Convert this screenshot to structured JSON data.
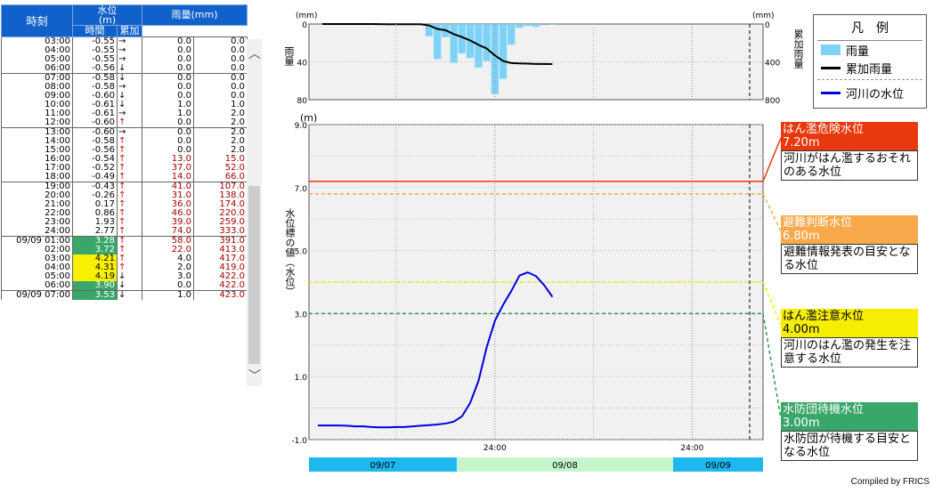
{
  "table": {
    "headers": {
      "time": "時刻",
      "level": "水位",
      "level_unit": "(m)",
      "rain": "雨量(mm)",
      "rain_hour": "時間",
      "rain_total": "累加"
    },
    "groups": [
      [
        {
          "t": "03:00",
          "v": "-0.55",
          "a": "→",
          "h": "0.0",
          "s": "0.0"
        },
        {
          "t": "04:00",
          "v": "-0.55",
          "a": "→",
          "h": "0.0",
          "s": "0.0"
        },
        {
          "t": "05:00",
          "v": "-0.55",
          "a": "→",
          "h": "0.0",
          "s": "0.0"
        },
        {
          "t": "06:00",
          "v": "-0.56",
          "a": "↓",
          "h": "0.0",
          "s": "0.0"
        }
      ],
      [
        {
          "t": "07:00",
          "v": "-0.58",
          "a": "↓",
          "h": "0.0",
          "s": "0.0"
        },
        {
          "t": "08:00",
          "v": "-0.58",
          "a": "→",
          "h": "0.0",
          "s": "0.0"
        },
        {
          "t": "09:00",
          "v": "-0.60",
          "a": "↓",
          "h": "0.0",
          "s": "0.0"
        },
        {
          "t": "10:00",
          "v": "-0.61",
          "a": "↓",
          "h": "1.0",
          "s": "1.0"
        },
        {
          "t": "11:00",
          "v": "-0.61",
          "a": "→",
          "h": "1.0",
          "s": "2.0"
        },
        {
          "t": "12:00",
          "v": "-0.60",
          "a": "↑",
          "h": "0.0",
          "s": "2.0"
        }
      ],
      [
        {
          "t": "13:00",
          "v": "-0.60",
          "a": "→",
          "h": "0.0",
          "s": "2.0"
        },
        {
          "t": "14:00",
          "v": "-0.58",
          "a": "↑",
          "h": "0.0",
          "s": "2.0"
        },
        {
          "t": "15:00",
          "v": "-0.56",
          "a": "↑",
          "h": "0.0",
          "s": "2.0"
        },
        {
          "t": "16:00",
          "v": "-0.54",
          "a": "↑",
          "h": "13.0",
          "s": "15.0"
        },
        {
          "t": "17:00",
          "v": "-0.52",
          "a": "↑",
          "h": "37.0",
          "s": "52.0"
        },
        {
          "t": "18:00",
          "v": "-0.49",
          "a": "↑",
          "h": "14.0",
          "s": "66.0"
        }
      ],
      [
        {
          "t": "19:00",
          "v": "-0.43",
          "a": "↑",
          "h": "41.0",
          "s": "107.0"
        },
        {
          "t": "20:00",
          "v": "-0.26",
          "a": "↑",
          "h": "31.0",
          "s": "138.0"
        },
        {
          "t": "21:00",
          "v": "0.17",
          "a": "↑",
          "h": "36.0",
          "s": "174.0"
        },
        {
          "t": "22:00",
          "v": "0.86",
          "a": "↑",
          "h": "46.0",
          "s": "220.0"
        },
        {
          "t": "23:00",
          "v": "1.93",
          "a": "↑",
          "h": "39.0",
          "s": "259.0"
        },
        {
          "t": "24:00",
          "v": "2.77",
          "a": "↑",
          "h": "74.0",
          "s": "333.0"
        }
      ],
      [
        {
          "t": "09/09 01:00",
          "v": "3.28",
          "a": "↑",
          "h": "58.0",
          "s": "391.0",
          "c": "green"
        },
        {
          "t": "02:00",
          "v": "3.72",
          "a": "↑",
          "h": "22.0",
          "s": "413.0",
          "c": "green"
        },
        {
          "t": "03:00",
          "v": "4.21",
          "a": "↑",
          "h": "4.0",
          "s": "417.0",
          "c": "yellow"
        },
        {
          "t": "04:00",
          "v": "4.31",
          "a": "↑",
          "h": "2.0",
          "s": "419.0",
          "c": "yellow"
        },
        {
          "t": "05:00",
          "v": "4.19",
          "a": "↓",
          "h": "3.0",
          "s": "422.0",
          "c": "yellow"
        },
        {
          "t": "06:00",
          "v": "3.90",
          "a": "↓",
          "h": "0.0",
          "s": "422.0",
          "c": "green"
        }
      ],
      [
        {
          "t": "09/09 07:00",
          "v": "3.53",
          "a": "↓",
          "h": "1.0",
          "s": "423.0",
          "c": "green"
        }
      ]
    ]
  },
  "rain_chart": {
    "left_unit": "(mm)",
    "right_unit": "(mm)",
    "left_label": "雨量",
    "right_label": "累加雨量",
    "left_ticks": [
      "0",
      "40",
      "80"
    ],
    "right_ticks": [
      "0",
      "400",
      "800"
    ]
  },
  "level_chart": {
    "unit": "(m)",
    "ylabel": "水位標の値（水位）",
    "y_ticks": [
      "9.0",
      "7.0",
      "5.0",
      "3.0",
      "1.0",
      "-1.0"
    ],
    "x_ticks": [
      "24:00",
      "24:00"
    ],
    "dates": [
      "09/07",
      "09/08",
      "09/09"
    ]
  },
  "legend": {
    "title": "凡　例",
    "items": [
      "雨量",
      "累加雨量",
      "河川の水位"
    ]
  },
  "callouts": [
    {
      "title": "はん濫危険水位",
      "value": "7.20m",
      "desc": "河川がはん濫するおそれのある水位",
      "color": "#e8380d"
    },
    {
      "title": "避難判断水位",
      "value": "6.80m",
      "desc": "避難情報発表の目安となる水位",
      "color": "#f7a94c"
    },
    {
      "title": "はん濫注意水位",
      "value": "4.00m",
      "desc": "河川のはん濫の発生を注意する水位",
      "color": "#f5ee00"
    },
    {
      "title": "水防団待機水位",
      "value": "3.00m",
      "desc": "水防団が待機する目安となる水位",
      "color": "#3aa76a"
    }
  ],
  "thresholds": [
    {
      "name": "はん濫危険水位",
      "level": 7.2,
      "color": "#e8380d"
    },
    {
      "name": "避難判断水位",
      "level": 6.8,
      "color": "#f7a94c"
    },
    {
      "name": "はん濫注意水位",
      "level": 4.0,
      "color": "#f5ee00"
    },
    {
      "name": "水防団待機水位",
      "level": 3.0,
      "color": "#2d9a4a"
    }
  ],
  "credit": "Compiled by FRICS",
  "colors": {
    "header_blue": "#1061c9",
    "rain_bar": "#7dd3f5",
    "level_line": "#0000dd",
    "plot_bg": "#f1f1f1"
  }
}
